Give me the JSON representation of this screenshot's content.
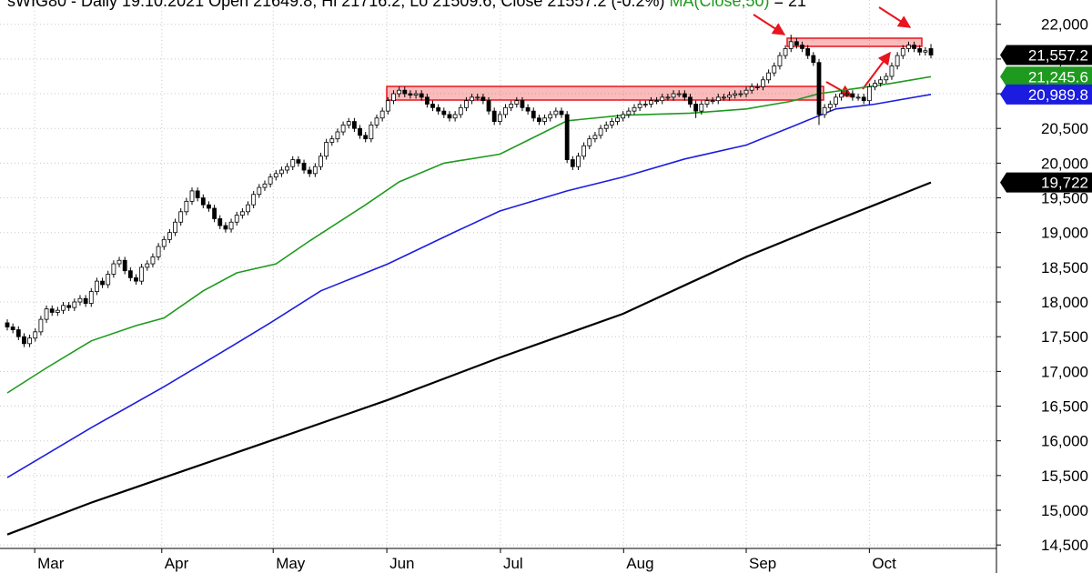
{
  "chart_data": {
    "type": "candlestick",
    "title": "sWIG80 - Daily 19.10.2021 Open 21649.8, Hi 21716.2, Lo 21509.6, Close 21557.2 (-0.2%)",
    "ma_readout": "= 21",
    "xlim": [
      -1.3,
      176.7
    ],
    "xticks": [
      {
        "value": 4.9,
        "label": "Mar"
      },
      {
        "value": 27.6,
        "label": "Apr"
      },
      {
        "value": 47.5,
        "label": "May"
      },
      {
        "value": 67.8,
        "label": "Jun"
      },
      {
        "value": 88.1,
        "label": "Jul"
      },
      {
        "value": 110.1,
        "label": "Aug"
      },
      {
        "value": 132.0,
        "label": "Sep"
      },
      {
        "value": 154.0,
        "label": "Oct"
      }
    ],
    "ylim": [
      14450,
      22350
    ],
    "yticks": [
      {
        "value": 14500,
        "label": "14,500"
      },
      {
        "value": 15000,
        "label": "15,000"
      },
      {
        "value": 15500,
        "label": "15,500"
      },
      {
        "value": 16000,
        "label": "16,000"
      },
      {
        "value": 16500,
        "label": "16,500"
      },
      {
        "value": 17000,
        "label": "17,000"
      },
      {
        "value": 17500,
        "label": "17,500"
      },
      {
        "value": 18000,
        "label": "18,000"
      },
      {
        "value": 18500,
        "label": "18,500"
      },
      {
        "value": 19000,
        "label": "19,000"
      },
      {
        "value": 19500,
        "label": "19,500"
      },
      {
        "value": 20000,
        "label": "20,000"
      },
      {
        "value": 20500,
        "label": "20,500"
      },
      {
        "value": 21000,
        "label": "21,000"
      },
      {
        "value": 21500,
        "label": "21,500"
      },
      {
        "value": 22000,
        "label": "22,000"
      }
    ],
    "grid": true,
    "candles": {
      "up_color": "#ffffff",
      "down_color": "#000000",
      "tag_color": "#000000",
      "last_value": 21557.2,
      "last_value_label": "21,557.2",
      "x": [
        0,
        1,
        2,
        3,
        4,
        5,
        6,
        7,
        8,
        9,
        10,
        11,
        12,
        13,
        14,
        15,
        16,
        17,
        18,
        19,
        20,
        21,
        22,
        23,
        24,
        25,
        26,
        27,
        28,
        29,
        30,
        31,
        32,
        33,
        34,
        35,
        36,
        37,
        38,
        39,
        40,
        41,
        42,
        43,
        44,
        45,
        46,
        47,
        48,
        49,
        50,
        51,
        52,
        53,
        54,
        55,
        56,
        57,
        58,
        59,
        60,
        61,
        62,
        63,
        64,
        65,
        66,
        67,
        68,
        69,
        70,
        71,
        72,
        73,
        74,
        75,
        76,
        77,
        78,
        79,
        80,
        81,
        82,
        83,
        84,
        85,
        86,
        87,
        88,
        89,
        90,
        91,
        92,
        93,
        94,
        95,
        96,
        97,
        98,
        99,
        100,
        101,
        102,
        103,
        104,
        105,
        106,
        107,
        108,
        109,
        110,
        111,
        112,
        113,
        114,
        115,
        116,
        117,
        118,
        119,
        120,
        121,
        122,
        123,
        124,
        125,
        126,
        127,
        128,
        129,
        130,
        131,
        132,
        133,
        134,
        135,
        136,
        137,
        138,
        139,
        140,
        141,
        142,
        143,
        144,
        145,
        146,
        147,
        148,
        149,
        150,
        151,
        152,
        153,
        154,
        155,
        156,
        157,
        158,
        159,
        160,
        161,
        162,
        163,
        164,
        165
      ],
      "open": [
        17700,
        17640,
        17600,
        17500,
        17400,
        17480,
        17570,
        17750,
        17900,
        17850,
        17880,
        17950,
        17920,
        18000,
        18050,
        17980,
        18150,
        18300,
        18250,
        18400,
        18550,
        18600,
        18450,
        18350,
        18300,
        18500,
        18550,
        18650,
        18800,
        18900,
        19000,
        19150,
        19300,
        19450,
        19600,
        19500,
        19400,
        19350,
        19200,
        19100,
        19050,
        19150,
        19250,
        19300,
        19400,
        19550,
        19650,
        19700,
        19800,
        19850,
        19900,
        19950,
        20050,
        20000,
        19900,
        19850,
        19950,
        20100,
        20300,
        20350,
        20450,
        20550,
        20600,
        20500,
        20400,
        20350,
        20550,
        20650,
        20750,
        20900,
        21000,
        21050,
        21000,
        20980,
        21000,
        20950,
        20850,
        20800,
        20750,
        20700,
        20650,
        20700,
        20800,
        20900,
        20950,
        20950,
        20900,
        20750,
        20600,
        20700,
        20800,
        20850,
        20900,
        20800,
        20750,
        20650,
        20600,
        20650,
        20700,
        20750,
        20700,
        20050,
        19950,
        20100,
        20250,
        20350,
        20400,
        20500,
        20550,
        20600,
        20650,
        20700,
        20750,
        20800,
        20850,
        20850,
        20900,
        20900,
        20950,
        20950,
        21000,
        21000,
        20950,
        20850,
        20750,
        20850,
        20900,
        20900,
        20950,
        20950,
        20980,
        21000,
        21000,
        21050,
        21100,
        21100,
        21200,
        21300,
        21400,
        21550,
        21650,
        21750,
        21700,
        21650,
        21550,
        21450,
        20700,
        20800,
        20850,
        20950,
        21000,
        21000,
        20950,
        20950,
        20900,
        21100,
        21150,
        21200,
        21250,
        21400,
        21550,
        21650,
        21700,
        21650,
        21600,
        21649.8
      ],
      "high": [
        17750,
        17690,
        17650,
        17550,
        17530,
        17620,
        17800,
        17950,
        17950,
        17930,
        18000,
        18000,
        18050,
        18100,
        18100,
        18200,
        18350,
        18350,
        18450,
        18600,
        18650,
        18650,
        18500,
        18400,
        18550,
        18600,
        18700,
        18850,
        18950,
        19050,
        19200,
        19350,
        19500,
        19650,
        19650,
        19550,
        19450,
        19400,
        19250,
        19150,
        19200,
        19300,
        19350,
        19450,
        19600,
        19700,
        19750,
        19850,
        19900,
        19950,
        20000,
        20100,
        20100,
        20050,
        19950,
        20000,
        20150,
        20350,
        20400,
        20500,
        20600,
        20650,
        20650,
        20550,
        20450,
        20600,
        20700,
        20800,
        20950,
        21050,
        21100,
        21100,
        21050,
        21050,
        21050,
        21000,
        20900,
        20850,
        20800,
        20750,
        20750,
        20850,
        20950,
        21000,
        21000,
        21000,
        20950,
        20800,
        20750,
        20850,
        20900,
        20950,
        20950,
        20850,
        20800,
        20700,
        20700,
        20750,
        20800,
        20800,
        20750,
        20100,
        20150,
        20300,
        20400,
        20450,
        20550,
        20600,
        20650,
        20700,
        20750,
        20800,
        20850,
        20900,
        20900,
        20950,
        20950,
        21000,
        21000,
        21050,
        21050,
        21050,
        21000,
        20900,
        20900,
        20950,
        20950,
        21000,
        21000,
        21030,
        21050,
        21050,
        21100,
        21150,
        21150,
        21250,
        21350,
        21450,
        21600,
        21700,
        21850,
        21800,
        21750,
        21700,
        21600,
        21500,
        20850,
        20900,
        21000,
        21050,
        21050,
        21050,
        21000,
        21000,
        21150,
        21200,
        21250,
        21300,
        21450,
        21600,
        21700,
        21750,
        21750,
        21700,
        21670,
        21716.2
      ],
      "low": [
        17590,
        17550,
        17450,
        17350,
        17350,
        17430,
        17520,
        17700,
        17800,
        17800,
        17830,
        17870,
        17870,
        17950,
        17930,
        17930,
        18100,
        18200,
        18200,
        18350,
        18500,
        18400,
        18300,
        18250,
        18250,
        18450,
        18500,
        18600,
        18750,
        18850,
        18950,
        19100,
        19250,
        19400,
        19450,
        19350,
        19300,
        19150,
        19050,
        19000,
        19000,
        19100,
        19200,
        19250,
        19350,
        19500,
        19600,
        19650,
        19750,
        19800,
        19850,
        19900,
        19950,
        19850,
        19800,
        19800,
        19900,
        20050,
        20250,
        20300,
        20400,
        20500,
        20450,
        20350,
        20300,
        20300,
        20500,
        20600,
        20700,
        20850,
        20950,
        20950,
        20930,
        20930,
        20900,
        20800,
        20750,
        20700,
        20650,
        20600,
        20600,
        20650,
        20750,
        20850,
        20900,
        20850,
        20700,
        20550,
        20550,
        20650,
        20750,
        20800,
        20750,
        20700,
        20600,
        20550,
        20550,
        20600,
        20650,
        20650,
        20000,
        19900,
        19900,
        20050,
        20200,
        20300,
        20350,
        20450,
        20500,
        20550,
        20600,
        20650,
        20700,
        20750,
        20800,
        20800,
        20850,
        20850,
        20900,
        20900,
        20950,
        20900,
        20800,
        20650,
        20700,
        20800,
        20850,
        20850,
        20900,
        20900,
        20930,
        20950,
        20950,
        21000,
        21050,
        21050,
        21150,
        21250,
        21350,
        21500,
        21600,
        21650,
        21600,
        21500,
        21400,
        20550,
        20650,
        20750,
        20800,
        20900,
        20950,
        20900,
        20900,
        20850,
        20850,
        21050,
        21100,
        21150,
        21200,
        21350,
        21500,
        21600,
        21600,
        21550,
        21550,
        21509.6
      ],
      "close": [
        17640,
        17600,
        17500,
        17400,
        17480,
        17570,
        17750,
        17900,
        17850,
        17880,
        17950,
        17920,
        18000,
        18050,
        17980,
        18150,
        18300,
        18250,
        18400,
        18550,
        18600,
        18450,
        18350,
        18300,
        18500,
        18550,
        18650,
        18800,
        18900,
        19000,
        19150,
        19300,
        19450,
        19600,
        19500,
        19400,
        19350,
        19200,
        19100,
        19050,
        19150,
        19250,
        19300,
        19400,
        19550,
        19650,
        19700,
        19800,
        19850,
        19900,
        19950,
        20050,
        20000,
        19900,
        19850,
        19950,
        20100,
        20300,
        20350,
        20450,
        20550,
        20600,
        20500,
        20400,
        20350,
        20550,
        20650,
        20750,
        20900,
        21000,
        21050,
        21000,
        20980,
        21000,
        20950,
        20850,
        20800,
        20750,
        20700,
        20650,
        20700,
        20800,
        20900,
        20950,
        20950,
        20900,
        20750,
        20600,
        20700,
        20800,
        20850,
        20900,
        20800,
        20750,
        20650,
        20600,
        20650,
        20700,
        20750,
        20700,
        20050,
        19950,
        20100,
        20250,
        20350,
        20400,
        20500,
        20550,
        20600,
        20650,
        20700,
        20750,
        20800,
        20850,
        20850,
        20900,
        20900,
        20950,
        20950,
        21000,
        21000,
        20950,
        20850,
        20750,
        20850,
        20900,
        20900,
        20950,
        20950,
        20980,
        21000,
        21000,
        21050,
        21100,
        21100,
        21200,
        21300,
        21400,
        21550,
        21650,
        21750,
        21700,
        21650,
        21550,
        21450,
        20700,
        20800,
        20850,
        20950,
        21000,
        21000,
        20950,
        20950,
        20900,
        21100,
        21150,
        21200,
        21250,
        21400,
        21550,
        21650,
        21700,
        21650,
        21600,
        21620,
        21557.2
      ]
    },
    "series": [
      {
        "name": "MA(Close,50)",
        "color": "#1e9a1e",
        "x": [
          0,
          7,
          15,
          23,
          28,
          35,
          41,
          48,
          54,
          64,
          70,
          78,
          88,
          95,
          100,
          110,
          122,
          132,
          140,
          145,
          152,
          158,
          165
        ],
        "values": [
          16690,
          17050,
          17440,
          17660,
          17770,
          18160,
          18420,
          18550,
          18880,
          19400,
          19730,
          20000,
          20130,
          20410,
          20610,
          20690,
          20720,
          20780,
          20890,
          21000,
          21080,
          21150,
          21245.6
        ],
        "last_value": 21245.6,
        "last_value_label": "21,245.6"
      },
      {
        "color": "#1c1ce0",
        "x": [
          0,
          15,
          28,
          39,
          47,
          56,
          68,
          80,
          88,
          100,
          110,
          121,
          132,
          140,
          148,
          155,
          165
        ],
        "values": [
          15470,
          16190,
          16780,
          17310,
          17700,
          18160,
          18550,
          19010,
          19310,
          19600,
          19800,
          20060,
          20260,
          20520,
          20780,
          20850,
          20989.8
        ],
        "last_value": 20989.8,
        "last_value_label": "20,989.8"
      },
      {
        "color": "#000000",
        "x": [
          0,
          15,
          28,
          47,
          68,
          88,
          110,
          132,
          145,
          155,
          165
        ],
        "values": [
          14650,
          15110,
          15470,
          16000,
          16590,
          17200,
          17830,
          18650,
          19080,
          19400,
          19722
        ],
        "last_value": 19722,
        "last_value_label": "19,722"
      }
    ]
  }
}
